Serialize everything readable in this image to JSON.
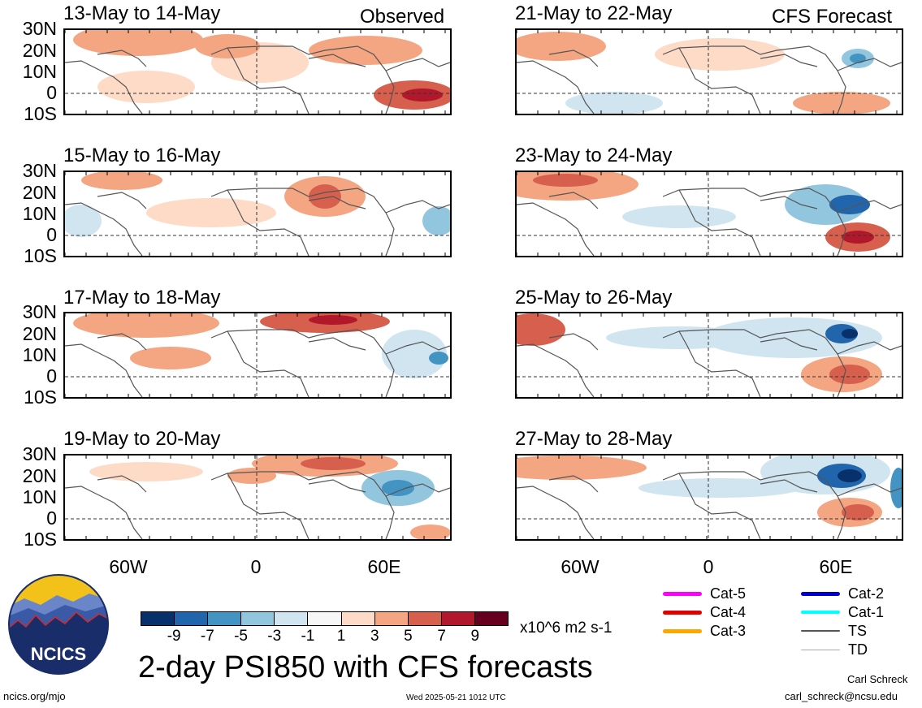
{
  "panels": [
    {
      "title": "13-May to 14-May",
      "tag": "Observed"
    },
    {
      "title": "21-May to 22-May",
      "tag": "CFS Forecast"
    },
    {
      "title": "15-May to 16-May",
      "tag": ""
    },
    {
      "title": "23-May to 24-May",
      "tag": ""
    },
    {
      "title": "17-May to 18-May",
      "tag": ""
    },
    {
      "title": "25-May to 26-May",
      "tag": ""
    },
    {
      "title": "19-May to 20-May",
      "tag": ""
    },
    {
      "title": "27-May to 28-May",
      "tag": ""
    }
  ],
  "lat_labels": [
    "30N",
    "20N",
    "10N",
    "0",
    "10S"
  ],
  "lon_labels": [
    "60W",
    "0",
    "60E"
  ],
  "colorbar": {
    "colors": [
      "#08306b",
      "#2166ac",
      "#4393c3",
      "#92c5de",
      "#d1e5f0",
      "#f7f7f7",
      "#fddbc7",
      "#f4a582",
      "#d6604d",
      "#b2182b",
      "#67001f"
    ],
    "labels": [
      "-9",
      "-7",
      "-5",
      "-3",
      "-1",
      "1",
      "3",
      "5",
      "7",
      "9"
    ],
    "units": "x10^6 m2 s-1"
  },
  "legend": [
    {
      "label": "Cat-5",
      "color": "#ff00ff",
      "weight": 5
    },
    {
      "label": "Cat-2",
      "color": "#0000cd",
      "weight": 5
    },
    {
      "label": "Cat-4",
      "color": "#e00000",
      "weight": 5
    },
    {
      "label": "Cat-1",
      "color": "#00ffff",
      "weight": 4
    },
    {
      "label": "Cat-3",
      "color": "#ffa500",
      "weight": 5
    },
    {
      "label": "TS",
      "color": "#555555",
      "weight": 2
    },
    {
      "label": "TD",
      "color": "#aaaaaa",
      "weight": 1
    }
  ],
  "logo_text": "NCICS",
  "main_title": "2-day PSI850 with CFS forecasts",
  "footer": {
    "url": "ncics.org/mjo",
    "timestamp": "Wed 2025-05-21 1012 UTC",
    "author": "Carl Schreck",
    "email": "carl_schreck@ncsu.edu"
  }
}
